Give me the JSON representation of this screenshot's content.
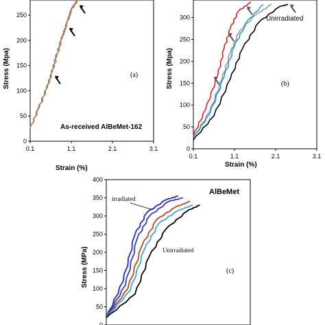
{
  "chart_data": [
    {
      "panel": "(a)",
      "type": "line",
      "xlabel": "Strain (%)",
      "ylabel": "Stress (Mpa)",
      "xticks": [
        "0.1",
        "1.1",
        "2.1",
        "3.1"
      ],
      "yticks": [
        "0",
        "50",
        "100",
        "150",
        "200",
        "250"
      ],
      "xlim": [
        0.1,
        3.1
      ],
      "ylim": [
        0,
        280
      ],
      "annotation": "As-received AlBeMet-162",
      "series": [
        {
          "color": "#2a7fff",
          "x": [
            0.1,
            0.3,
            0.5,
            0.62,
            0.72,
            0.85,
            1.0,
            1.1,
            1.25
          ],
          "y": [
            25,
            65,
            105,
            135,
            165,
            200,
            235,
            260,
            280
          ]
        },
        {
          "color": "#d47a1e",
          "x": [
            0.1,
            0.32,
            0.52,
            0.64,
            0.75,
            0.88,
            1.02,
            1.12,
            1.28
          ],
          "y": [
            25,
            66,
            107,
            138,
            168,
            205,
            240,
            265,
            282
          ]
        }
      ],
      "arrows": [
        {
          "x": 0.7,
          "y": 130
        },
        {
          "x": 1.05,
          "y": 225
        },
        {
          "x": 1.3,
          "y": 270
        }
      ]
    },
    {
      "panel": "(b)",
      "type": "line",
      "xlabel": "Strain (%)",
      "ylabel": "Stress (Mpa)",
      "xticks": [
        "0.1",
        "1.1",
        "2.1",
        "3.1"
      ],
      "yticks": [
        "0",
        "50",
        "100",
        "150",
        "200",
        "250",
        "300"
      ],
      "xlim": [
        0.1,
        3.1
      ],
      "ylim": [
        0,
        340
      ],
      "annotation": "Unirradiated",
      "series": [
        {
          "color": "#e02020",
          "x": [
            0.1,
            0.4,
            0.7,
            0.85,
            1.0,
            1.2,
            1.5
          ],
          "y": [
            30,
            90,
            170,
            230,
            275,
            315,
            335
          ]
        },
        {
          "color": "#999999",
          "x": [
            0.1,
            0.5,
            0.8,
            1.0,
            1.2,
            1.6,
            2.0
          ],
          "y": [
            25,
            85,
            160,
            220,
            265,
            305,
            330
          ]
        },
        {
          "color": "#1f9bd7",
          "x": [
            0.1,
            0.5,
            0.85,
            1.1,
            1.4,
            1.8
          ],
          "y": [
            25,
            80,
            165,
            235,
            290,
            330
          ]
        },
        {
          "color": "#000000",
          "x": [
            0.1,
            0.6,
            1.0,
            1.3,
            1.7,
            2.2,
            2.4
          ],
          "y": [
            20,
            75,
            160,
            230,
            290,
            325,
            330
          ]
        }
      ],
      "arrows": [
        {
          "x": 0.6,
          "y": 165
        },
        {
          "x": 0.95,
          "y": 265
        },
        {
          "x": 1.4,
          "y": 325
        },
        {
          "x": 2.45,
          "y": 330
        }
      ]
    },
    {
      "panel": "(c)",
      "type": "line",
      "xlabel": "",
      "ylabel": "Stress (MPa)",
      "yticks": [
        "0",
        "50",
        "100",
        "150",
        "200",
        "250",
        "300",
        "350",
        "400"
      ],
      "ylim": [
        0,
        400
      ],
      "title": "AlBeMet",
      "annotations": [
        "irradiated",
        "Unirradiated"
      ],
      "series": [
        {
          "color": "#1a2bd0",
          "x": [
            0.1,
            0.45,
            0.7,
            0.95,
            1.35,
            1.6
          ],
          "y": [
            20,
            120,
            250,
            310,
            345,
            355
          ]
        },
        {
          "color": "#3b3bb0",
          "x": [
            0.1,
            0.5,
            0.75,
            1.0,
            1.4,
            1.7
          ],
          "y": [
            20,
            110,
            240,
            300,
            340,
            350
          ]
        },
        {
          "color": "#b84a1a",
          "x": [
            0.1,
            0.55,
            0.85,
            1.15,
            1.55,
            1.85
          ],
          "y": [
            20,
            100,
            220,
            290,
            325,
            340
          ]
        },
        {
          "color": "#3aa6e0",
          "x": [
            0.1,
            0.6,
            0.9,
            1.2,
            1.6,
            1.9
          ],
          "y": [
            20,
            95,
            210,
            280,
            315,
            330
          ]
        },
        {
          "color": "#000000",
          "x": [
            0.1,
            0.7,
            1.0,
            1.35,
            1.8,
            2.05
          ],
          "y": [
            20,
            85,
            190,
            265,
            315,
            330
          ]
        }
      ]
    }
  ],
  "panel_a": {
    "ylabel": "Stress (Mpa)",
    "xlabel": "Strain (%)",
    "panel_label": "(a)",
    "annotation": "As-received AlBeMet-162"
  },
  "panel_b": {
    "ylabel": "Stress (Mpa)",
    "xlabel": "Strain (%)",
    "panel_label": "(b)",
    "annotation": "Unirradiated"
  },
  "panel_c": {
    "ylabel": "Stress (MPa)",
    "panel_label": "(c)",
    "title": "AlBeMet",
    "irradiated": "irradiated",
    "unirradiated": "Unirradiated"
  }
}
